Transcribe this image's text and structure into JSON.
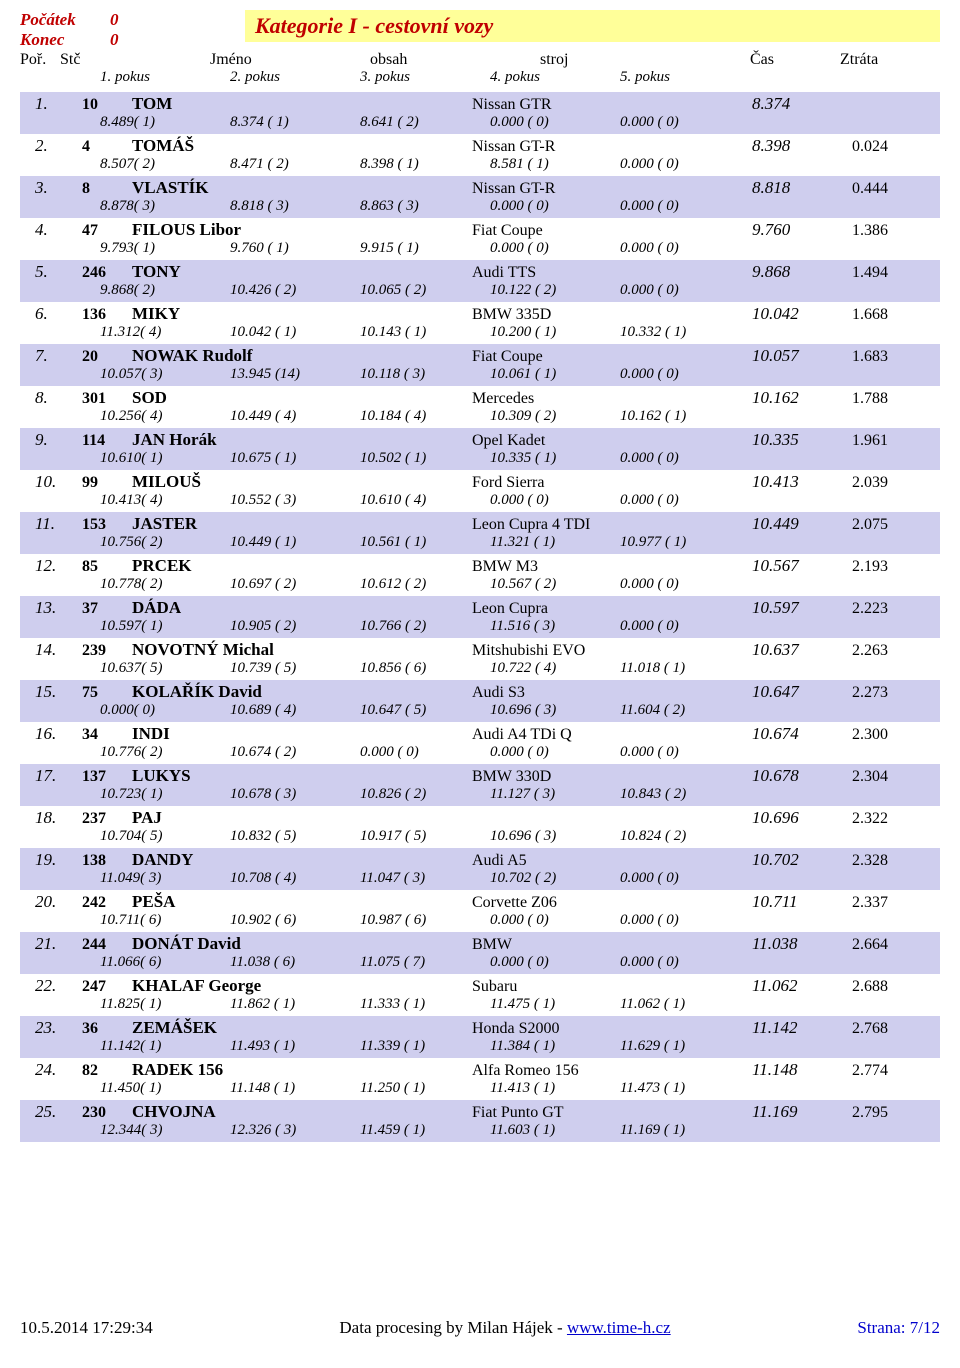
{
  "header": {
    "pocatek_label": "Počátek",
    "pocatek_value": "0",
    "konec_label": "Konec",
    "konec_value": "0",
    "title": "Kategorie I - cestovní vozy"
  },
  "cols": {
    "por": "Poř.",
    "stc": "Stč",
    "jmeno": "Jméno",
    "obsah": "obsah",
    "stroj": "stroj",
    "cas": "Čas",
    "ztrata": "Ztráta"
  },
  "subcols": {
    "p1": "1. pokus",
    "p2": "2. pokus",
    "p3": "3. pokus",
    "p4": "4. pokus",
    "p5": "5. pokus"
  },
  "rows": [
    {
      "por": "1.",
      "stc": "10",
      "name": "TOM",
      "car": "Nissan GTR",
      "cas": "8.374",
      "ztrata": "",
      "p": [
        "8.489( 1)",
        "8.374 ( 1)",
        "8.641 ( 2)",
        "0.000 ( 0)",
        "0.000 ( 0)"
      ]
    },
    {
      "por": "2.",
      "stc": "4",
      "name": "TOMÁŠ",
      "car": "Nissan GT-R",
      "cas": "8.398",
      "ztrata": "0.024",
      "p": [
        "8.507( 2)",
        "8.471 ( 2)",
        "8.398 ( 1)",
        "8.581 ( 1)",
        "0.000 ( 0)"
      ]
    },
    {
      "por": "3.",
      "stc": "8",
      "name": "VLASTÍK",
      "car": "Nissan GT-R",
      "cas": "8.818",
      "ztrata": "0.444",
      "p": [
        "8.878( 3)",
        "8.818 ( 3)",
        "8.863 ( 3)",
        "0.000 ( 0)",
        "0.000 ( 0)"
      ]
    },
    {
      "por": "4.",
      "stc": "47",
      "name": "FILOUS Libor",
      "car": "Fiat Coupe",
      "cas": "9.760",
      "ztrata": "1.386",
      "p": [
        "9.793( 1)",
        "9.760 ( 1)",
        "9.915 ( 1)",
        "0.000 ( 0)",
        "0.000 ( 0)"
      ]
    },
    {
      "por": "5.",
      "stc": "246",
      "name": "TONY",
      "car": "Audi TTS",
      "cas": "9.868",
      "ztrata": "1.494",
      "p": [
        "9.868( 2)",
        "10.426 ( 2)",
        "10.065 ( 2)",
        "10.122 ( 2)",
        "0.000 ( 0)"
      ]
    },
    {
      "por": "6.",
      "stc": "136",
      "name": "MIKY",
      "car": "BMW 335D",
      "cas": "10.042",
      "ztrata": "1.668",
      "p": [
        "11.312( 4)",
        "10.042 ( 1)",
        "10.143 ( 1)",
        "10.200 ( 1)",
        "10.332 ( 1)"
      ]
    },
    {
      "por": "7.",
      "stc": "20",
      "name": "NOWAK Rudolf",
      "car": "Fiat Coupe",
      "cas": "10.057",
      "ztrata": "1.683",
      "p": [
        "10.057( 3)",
        "13.945 (14)",
        "10.118 ( 3)",
        "10.061 ( 1)",
        "0.000 ( 0)"
      ]
    },
    {
      "por": "8.",
      "stc": "301",
      "name": "SOD",
      "car": "Mercedes",
      "cas": "10.162",
      "ztrata": "1.788",
      "p": [
        "10.256( 4)",
        "10.449 ( 4)",
        "10.184 ( 4)",
        "10.309 ( 2)",
        "10.162 ( 1)"
      ]
    },
    {
      "por": "9.",
      "stc": "114",
      "name": "JAN Horák",
      "car": "Opel Kadet",
      "cas": "10.335",
      "ztrata": "1.961",
      "p": [
        "10.610( 1)",
        "10.675 ( 1)",
        "10.502 ( 1)",
        "10.335 ( 1)",
        "0.000 ( 0)"
      ]
    },
    {
      "por": "10.",
      "stc": "99",
      "name": "MILOUŠ",
      "car": "Ford Sierra",
      "cas": "10.413",
      "ztrata": "2.039",
      "p": [
        "10.413( 4)",
        "10.552 ( 3)",
        "10.610 ( 4)",
        "0.000 ( 0)",
        "0.000 ( 0)"
      ]
    },
    {
      "por": "11.",
      "stc": "153",
      "name": "JASTER",
      "car": "Leon Cupra 4 TDI",
      "cas": "10.449",
      "ztrata": "2.075",
      "p": [
        "10.756( 2)",
        "10.449 ( 1)",
        "10.561 ( 1)",
        "11.321 ( 1)",
        "10.977 ( 1)"
      ]
    },
    {
      "por": "12.",
      "stc": "85",
      "name": "PRCEK",
      "car": "BMW M3",
      "cas": "10.567",
      "ztrata": "2.193",
      "p": [
        "10.778( 2)",
        "10.697 ( 2)",
        "10.612 ( 2)",
        "10.567 ( 2)",
        "0.000 ( 0)"
      ]
    },
    {
      "por": "13.",
      "stc": "37",
      "name": "DÁDA",
      "car": "Leon Cupra",
      "cas": "10.597",
      "ztrata": "2.223",
      "p": [
        "10.597( 1)",
        "10.905 ( 2)",
        "10.766 ( 2)",
        "11.516 ( 3)",
        "0.000 ( 0)"
      ]
    },
    {
      "por": "14.",
      "stc": "239",
      "name": "NOVOTNÝ Michal",
      "car": "Mitshubishi EVO",
      "cas": "10.637",
      "ztrata": "2.263",
      "p": [
        "10.637( 5)",
        "10.739 ( 5)",
        "10.856 ( 6)",
        "10.722 ( 4)",
        "11.018 ( 1)"
      ]
    },
    {
      "por": "15.",
      "stc": "75",
      "name": "KOLAŘÍK David",
      "car": "Audi S3",
      "cas": "10.647",
      "ztrata": "2.273",
      "p": [
        "0.000( 0)",
        "10.689 ( 4)",
        "10.647 ( 5)",
        "10.696 ( 3)",
        "11.604 ( 2)"
      ]
    },
    {
      "por": "16.",
      "stc": "34",
      "name": "INDI",
      "car": "Audi A4 TDi Q",
      "cas": "10.674",
      "ztrata": "2.300",
      "p": [
        "10.776( 2)",
        "10.674 ( 2)",
        "0.000 ( 0)",
        "0.000 ( 0)",
        "0.000 ( 0)"
      ]
    },
    {
      "por": "17.",
      "stc": "137",
      "name": "LUKYS",
      "car": "BMW 330D",
      "cas": "10.678",
      "ztrata": "2.304",
      "p": [
        "10.723( 1)",
        "10.678 ( 3)",
        "10.826 ( 2)",
        "11.127 ( 3)",
        "10.843 ( 2)"
      ]
    },
    {
      "por": "18.",
      "stc": "237",
      "name": "PAJ",
      "car": "",
      "cas": "10.696",
      "ztrata": "2.322",
      "p": [
        "10.704( 5)",
        "10.832 ( 5)",
        "10.917 ( 5)",
        "10.696 ( 3)",
        "10.824 ( 2)"
      ]
    },
    {
      "por": "19.",
      "stc": "138",
      "name": "DANDY",
      "car": "Audi A5",
      "cas": "10.702",
      "ztrata": "2.328",
      "p": [
        "11.049( 3)",
        "10.708 ( 4)",
        "11.047 ( 3)",
        "10.702 ( 2)",
        "0.000 ( 0)"
      ]
    },
    {
      "por": "20.",
      "stc": "242",
      "name": "PEŠA",
      "car": "Corvette Z06",
      "cas": "10.711",
      "ztrata": "2.337",
      "p": [
        "10.711( 6)",
        "10.902 ( 6)",
        "10.987 ( 6)",
        "0.000 ( 0)",
        "0.000 ( 0)"
      ]
    },
    {
      "por": "21.",
      "stc": "244",
      "name": "DONÁT David",
      "car": "BMW",
      "cas": "11.038",
      "ztrata": "2.664",
      "p": [
        "11.066( 6)",
        "11.038 ( 6)",
        "11.075 ( 7)",
        "0.000 ( 0)",
        "0.000 ( 0)"
      ]
    },
    {
      "por": "22.",
      "stc": "247",
      "name": "KHALAF George",
      "car": "Subaru",
      "cas": "11.062",
      "ztrata": "2.688",
      "p": [
        "11.825( 1)",
        "11.862 ( 1)",
        "11.333 ( 1)",
        "11.475 ( 1)",
        "11.062 ( 1)"
      ]
    },
    {
      "por": "23.",
      "stc": "36",
      "name": "ZEMÁŠEK",
      "car": "Honda S2000",
      "cas": "11.142",
      "ztrata": "2.768",
      "p": [
        "11.142( 1)",
        "11.493 ( 1)",
        "11.339 ( 1)",
        "11.384 ( 1)",
        "11.629 ( 1)"
      ]
    },
    {
      "por": "24.",
      "stc": "82",
      "name": "RADEK 156",
      "car": "Alfa Romeo 156",
      "cas": "11.148",
      "ztrata": "2.774",
      "p": [
        "11.450( 1)",
        "11.148 ( 1)",
        "11.250 ( 1)",
        "11.413 ( 1)",
        "11.473 ( 1)"
      ]
    },
    {
      "por": "25.",
      "stc": "230",
      "name": "CHVOJNA",
      "car": "Fiat Punto GT",
      "cas": "11.169",
      "ztrata": "2.795",
      "p": [
        "12.344( 3)",
        "12.326 ( 3)",
        "11.459 ( 1)",
        "11.603 ( 1)",
        "11.169 ( 1)"
      ]
    }
  ],
  "footer": {
    "datetime": "10.5.2014 17:29:34",
    "credit_prefix": "Data procesing by Milan Hájek - ",
    "credit_link": "www.time-h.cz",
    "page": "Strana: 7/12"
  }
}
